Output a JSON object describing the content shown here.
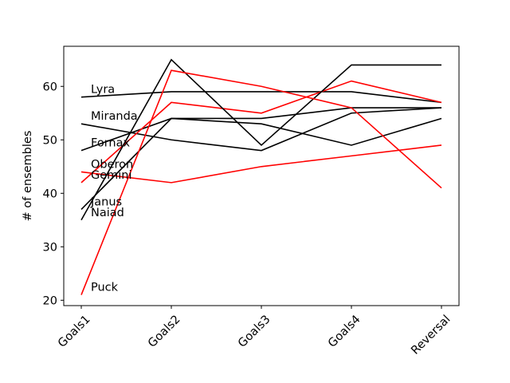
{
  "chart_data": {
    "type": "line",
    "categories": [
      "Goals1",
      "Goals2",
      "Goals3",
      "Goals4",
      "Reversal"
    ],
    "ylabel": "# of ensembles",
    "xlabel": "",
    "title": "",
    "ylim": [
      19,
      67.5
    ],
    "yticks": [
      20,
      30,
      40,
      50,
      60
    ],
    "grid": false,
    "series": [
      {
        "name": "Lyra",
        "color": "#000000",
        "values": [
          58,
          59,
          59,
          59,
          57
        ]
      },
      {
        "name": "Miranda",
        "color": "#000000",
        "values": [
          53,
          50,
          48,
          55,
          56
        ]
      },
      {
        "name": "Fornax",
        "color": "#000000",
        "values": [
          48,
          54,
          53,
          49,
          54
        ]
      },
      {
        "name": "Gemini",
        "color": "#ff0000",
        "values": [
          42,
          57,
          55,
          61,
          57
        ]
      },
      {
        "name": "Oberon",
        "color": "#ff0000",
        "values": [
          44,
          42,
          45,
          47,
          49
        ]
      },
      {
        "name": "Janus",
        "color": "#000000",
        "values": [
          37,
          54,
          54,
          56,
          56
        ]
      },
      {
        "name": "Naiad",
        "color": "#000000",
        "values": [
          35,
          65,
          49,
          64,
          64
        ]
      },
      {
        "name": "Puck",
        "color": "#ff0000",
        "values": [
          21,
          63,
          60,
          56,
          41
        ]
      }
    ]
  }
}
